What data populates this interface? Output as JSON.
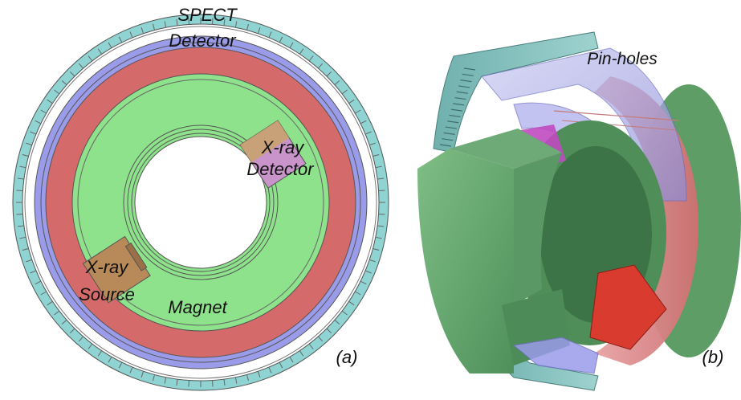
{
  "panel_a": {
    "tag": "(a)",
    "labels": {
      "spect_line1": "SPECT",
      "spect_line2": "Detector",
      "xray_det_line1": "X-ray",
      "xray_det_line2": "Detector",
      "xray_src_line1": "X-ray",
      "xray_src_line2": "Source",
      "magnet": "Magnet"
    }
  },
  "panel_b": {
    "tag": "(b)",
    "labels": {
      "pinholes": "Pin-holes"
    }
  },
  "colors": {
    "spect_detector": "#8fd3d2",
    "collimator": "#9a9cea",
    "outer_ring": "#d46a6a",
    "magnet": "#8fe28c",
    "xray_source": "#b88a5a",
    "xray_detector": "#c894c9",
    "outline": "#555555"
  }
}
